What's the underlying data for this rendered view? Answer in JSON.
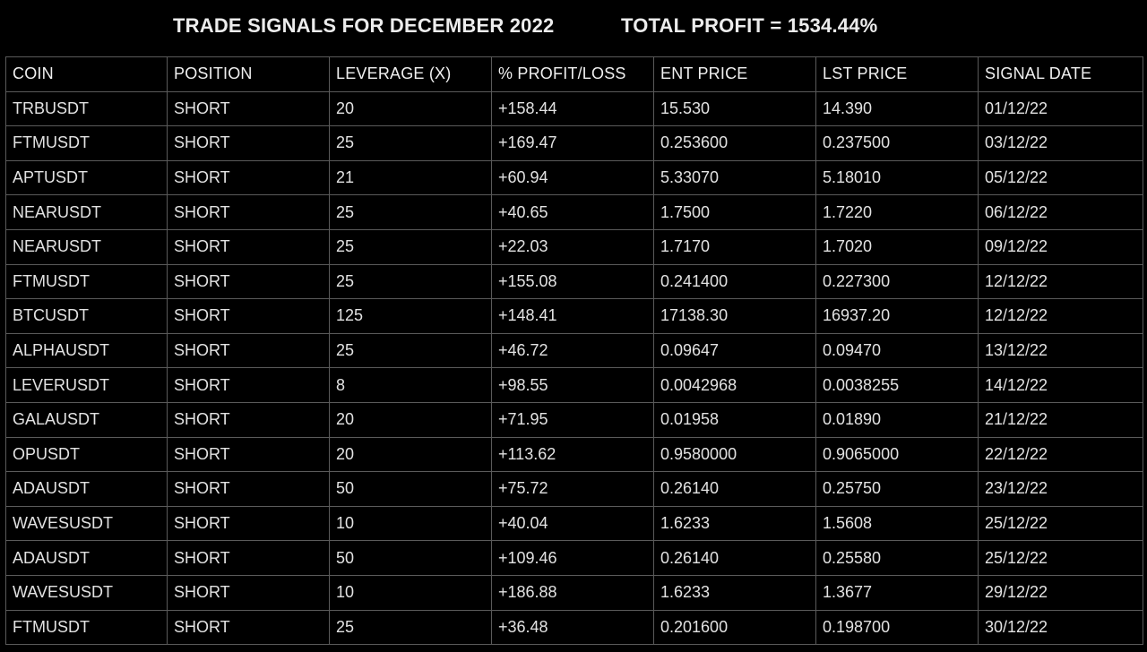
{
  "header": {
    "title": "TRADE SIGNALS FOR DECEMBER 2022",
    "total_profit": "TOTAL PROFIT = 1534.44%"
  },
  "table": {
    "columns": [
      "COIN",
      "POSITION",
      "LEVERAGE (X)",
      "% PROFIT/LOSS",
      "ENT PRICE",
      "LST PRICE",
      "SIGNAL DATE"
    ],
    "rows": [
      [
        "TRBUSDT",
        "SHORT",
        "20",
        "+158.44",
        "15.530",
        "14.390",
        "01/12/22"
      ],
      [
        "FTMUSDT",
        "SHORT",
        "25",
        "+169.47",
        "0.253600",
        "0.237500",
        "03/12/22"
      ],
      [
        "APTUSDT",
        "SHORT",
        "21",
        "+60.94",
        "5.33070",
        "5.18010",
        "05/12/22"
      ],
      [
        "NEARUSDT",
        "SHORT",
        "25",
        "+40.65",
        "1.7500",
        "1.7220",
        "06/12/22"
      ],
      [
        "NEARUSDT",
        "SHORT",
        "25",
        "+22.03",
        "1.7170",
        "1.7020",
        "09/12/22"
      ],
      [
        "FTMUSDT",
        "SHORT",
        "25",
        "+155.08",
        "0.241400",
        "0.227300",
        "12/12/22"
      ],
      [
        "BTCUSDT",
        "SHORT",
        "125",
        "+148.41",
        "17138.30",
        "16937.20",
        "12/12/22"
      ],
      [
        "ALPHAUSDT",
        "SHORT",
        "25",
        "+46.72",
        "0.09647",
        "0.09470",
        "13/12/22"
      ],
      [
        "LEVERUSDT",
        "SHORT",
        "8",
        "+98.55",
        "0.0042968",
        "0.0038255",
        "14/12/22"
      ],
      [
        "GALAUSDT",
        "SHORT",
        "20",
        "+71.95",
        "0.01958",
        "0.01890",
        "21/12/22"
      ],
      [
        "OPUSDT",
        "SHORT",
        "20",
        "+113.62",
        "0.9580000",
        "0.9065000",
        "22/12/22"
      ],
      [
        "ADAUSDT",
        "SHORT",
        "50",
        "+75.72",
        "0.26140",
        "0.25750",
        "23/12/22"
      ],
      [
        "WAVESUSDT",
        "SHORT",
        "10",
        "+40.04",
        "1.6233",
        "1.5608",
        "25/12/22"
      ],
      [
        "ADAUSDT",
        "SHORT",
        "50",
        "+109.46",
        "0.26140",
        "0.25580",
        "25/12/22"
      ],
      [
        "WAVESUSDT",
        "SHORT",
        "10",
        "+186.88",
        "1.6233",
        "1.3677",
        "29/12/22"
      ],
      [
        "FTMUSDT",
        "SHORT",
        "25",
        "+36.48",
        "0.201600",
        "0.198700",
        "30/12/22"
      ]
    ]
  },
  "colors": {
    "background": "#000000",
    "text": "#e2e2e2",
    "grid": "#5a5a5a"
  }
}
